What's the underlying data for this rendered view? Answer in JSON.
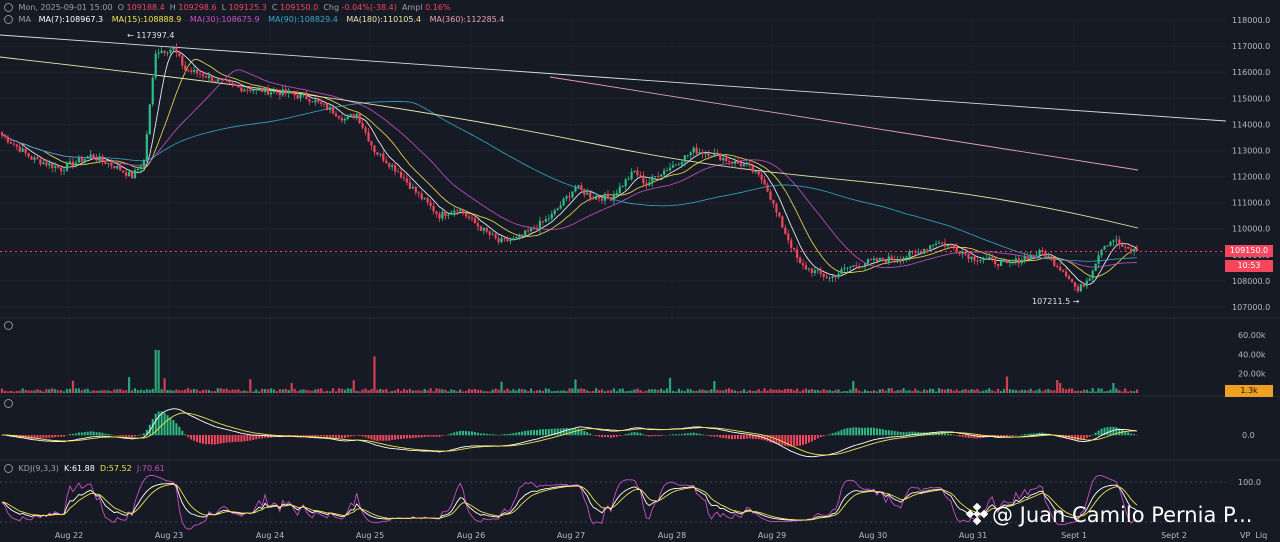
{
  "header": {
    "date_text": "Mon, 2025-09-01 15:00",
    "o_label": "O",
    "o_value": "109188.4",
    "h_label": "H",
    "h_value": "109298.6",
    "l_label": "L",
    "l_value": "109125.3",
    "c_label": "C",
    "c_value": "109150.0",
    "chg_label": "Chg",
    "chg_value": "-0.04%(-38.4)",
    "ampl_label": "Ampl",
    "ampl_value": "0.16%"
  },
  "ma_legend": {
    "title": "MA",
    "items": [
      {
        "text": "MA(7):108967.3",
        "color": "#ffffff"
      },
      {
        "text": "MA(15):108888.9",
        "color": "#f2e24b"
      },
      {
        "text": "MA(30):108675.9",
        "color": "#c94fc6"
      },
      {
        "text": "MA(90):108829.4",
        "color": "#34a7c9"
      },
      {
        "text": "MA(180):110105.4",
        "color": "#e8e6a8"
      },
      {
        "text": "MA(360):112285.4",
        "color": "#e8a0b0"
      }
    ]
  },
  "kdj_legend": {
    "title": "KDJ(9,3,3)",
    "k": "K:61.88",
    "d": "D:57.52",
    "j": "J:70.61",
    "k_color": "#ffffff",
    "d_color": "#f2e24b",
    "j_color": "#c94fc6"
  },
  "price_axis": {
    "ticks": [
      "118000.0",
      "117000.0",
      "116000.0",
      "115000.0",
      "114000.0",
      "113000.0",
      "112000.0",
      "111000.0",
      "110000.0",
      "109000.0",
      "108000.0",
      "107000.0"
    ],
    "current_price": "109150.0",
    "countdown": "10:53"
  },
  "volume_axis": {
    "ticks": [
      "60.00k",
      "40.00k",
      "20.00k"
    ],
    "current": "1.3k"
  },
  "macd_axis": {
    "ticks": [
      "0.0"
    ]
  },
  "kdj_axis": {
    "ticks": [
      "100.0"
    ]
  },
  "annotations": {
    "high": "← 117397.4",
    "low": "107211.5 →"
  },
  "date_labels": [
    "Aug 22",
    "Aug 23",
    "Aug 24",
    "Aug 25",
    "Aug 26",
    "Aug 27",
    "Aug 28",
    "Aug 29",
    "Aug 30",
    "Aug 31",
    "Sept 1",
    "Sept 2"
  ],
  "bottom_right": {
    "vp": "VP",
    "liq": "Liq"
  },
  "watermark": "@ Juan Camilo Pernia P...",
  "colors": {
    "up": "#2ebd85",
    "down": "#f6465d",
    "background": "#161a25",
    "badge_orange": "#f0a020"
  },
  "chart_data": {
    "type": "candlestick",
    "interval": "1h",
    "x": [
      "Aug 22",
      "Aug 23",
      "Aug 24",
      "Aug 25",
      "Aug 26",
      "Aug 27",
      "Aug 28",
      "Aug 29",
      "Aug 30",
      "Aug 31",
      "Sept 1"
    ],
    "close_series": [
      112900,
      117000,
      115200,
      114400,
      109800,
      111500,
      112900,
      108300,
      108700,
      108900,
      109150
    ],
    "price_range": [
      107000,
      118000
    ],
    "marked_high": 117397.4,
    "marked_low": 107211.5,
    "moving_averages": [
      "MA(7)",
      "MA(15)",
      "MA(30)",
      "MA(90)",
      "MA(180)",
      "MA(360)"
    ],
    "volume_range": [
      0,
      60000
    ],
    "indicators": [
      "Volume",
      "MACD",
      "KDJ(9,3,3)"
    ]
  }
}
